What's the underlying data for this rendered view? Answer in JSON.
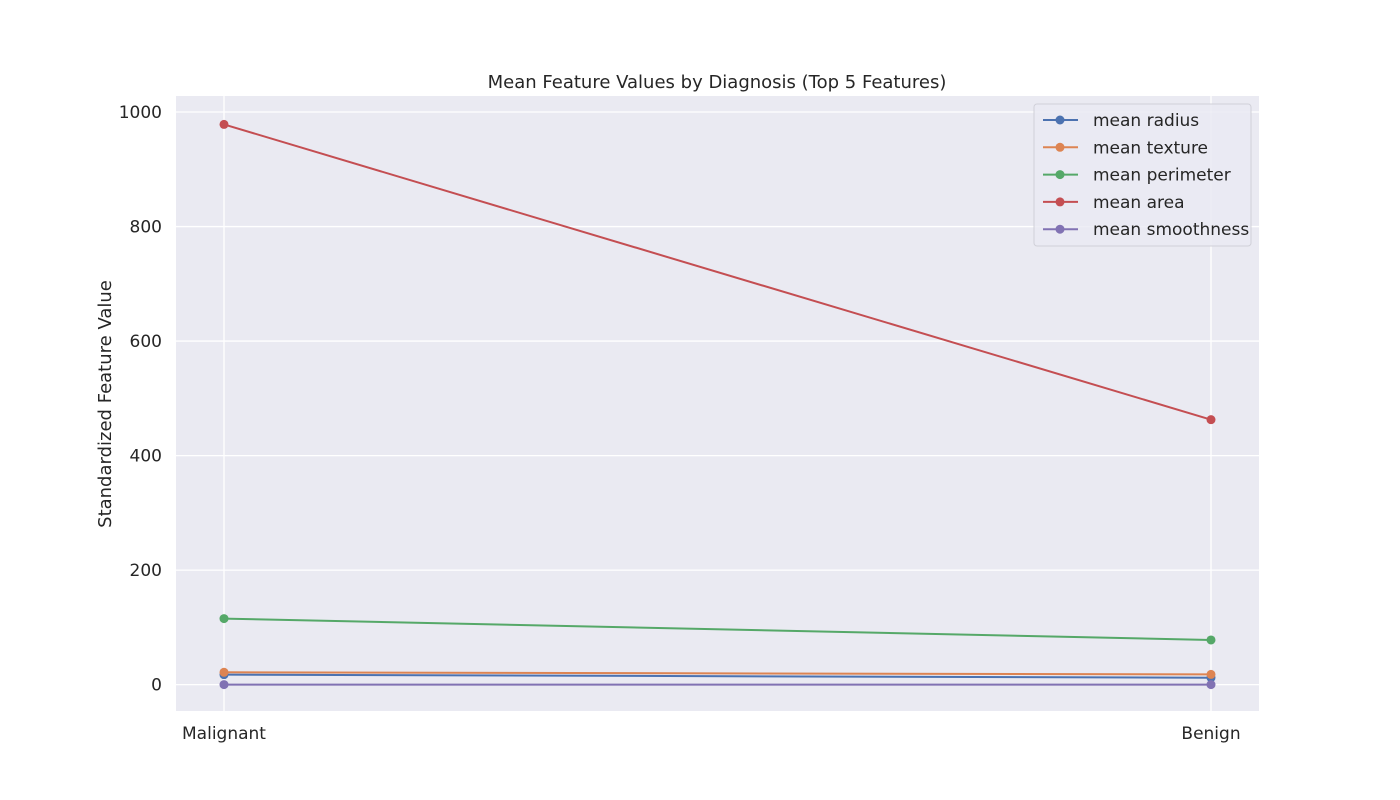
{
  "chart_data": {
    "type": "line",
    "title": "Mean Feature Values by Diagnosis (Top 5 Features)",
    "xlabel": "",
    "ylabel": "Standardized Feature Value",
    "categories": [
      "Malignant",
      "Benign"
    ],
    "ylim": [
      -46,
      1028
    ],
    "yticks": [
      0,
      200,
      400,
      600,
      800,
      1000
    ],
    "grid": true,
    "legend_position": "top-right",
    "background_color": "#eaeaf2",
    "grid_color": "#ffffff",
    "series": [
      {
        "name": "mean radius",
        "color": "#4c72b0",
        "values": [
          17.46,
          12.15
        ]
      },
      {
        "name": "mean texture",
        "color": "#dd8452",
        "values": [
          21.6,
          17.91
        ]
      },
      {
        "name": "mean perimeter",
        "color": "#55a868",
        "values": [
          115.37,
          78.08
        ]
      },
      {
        "name": "mean area",
        "color": "#c44e52",
        "values": [
          978.38,
          462.79
        ]
      },
      {
        "name": "mean smoothness",
        "color": "#8172b3",
        "values": [
          0.1,
          0.09
        ]
      }
    ]
  }
}
